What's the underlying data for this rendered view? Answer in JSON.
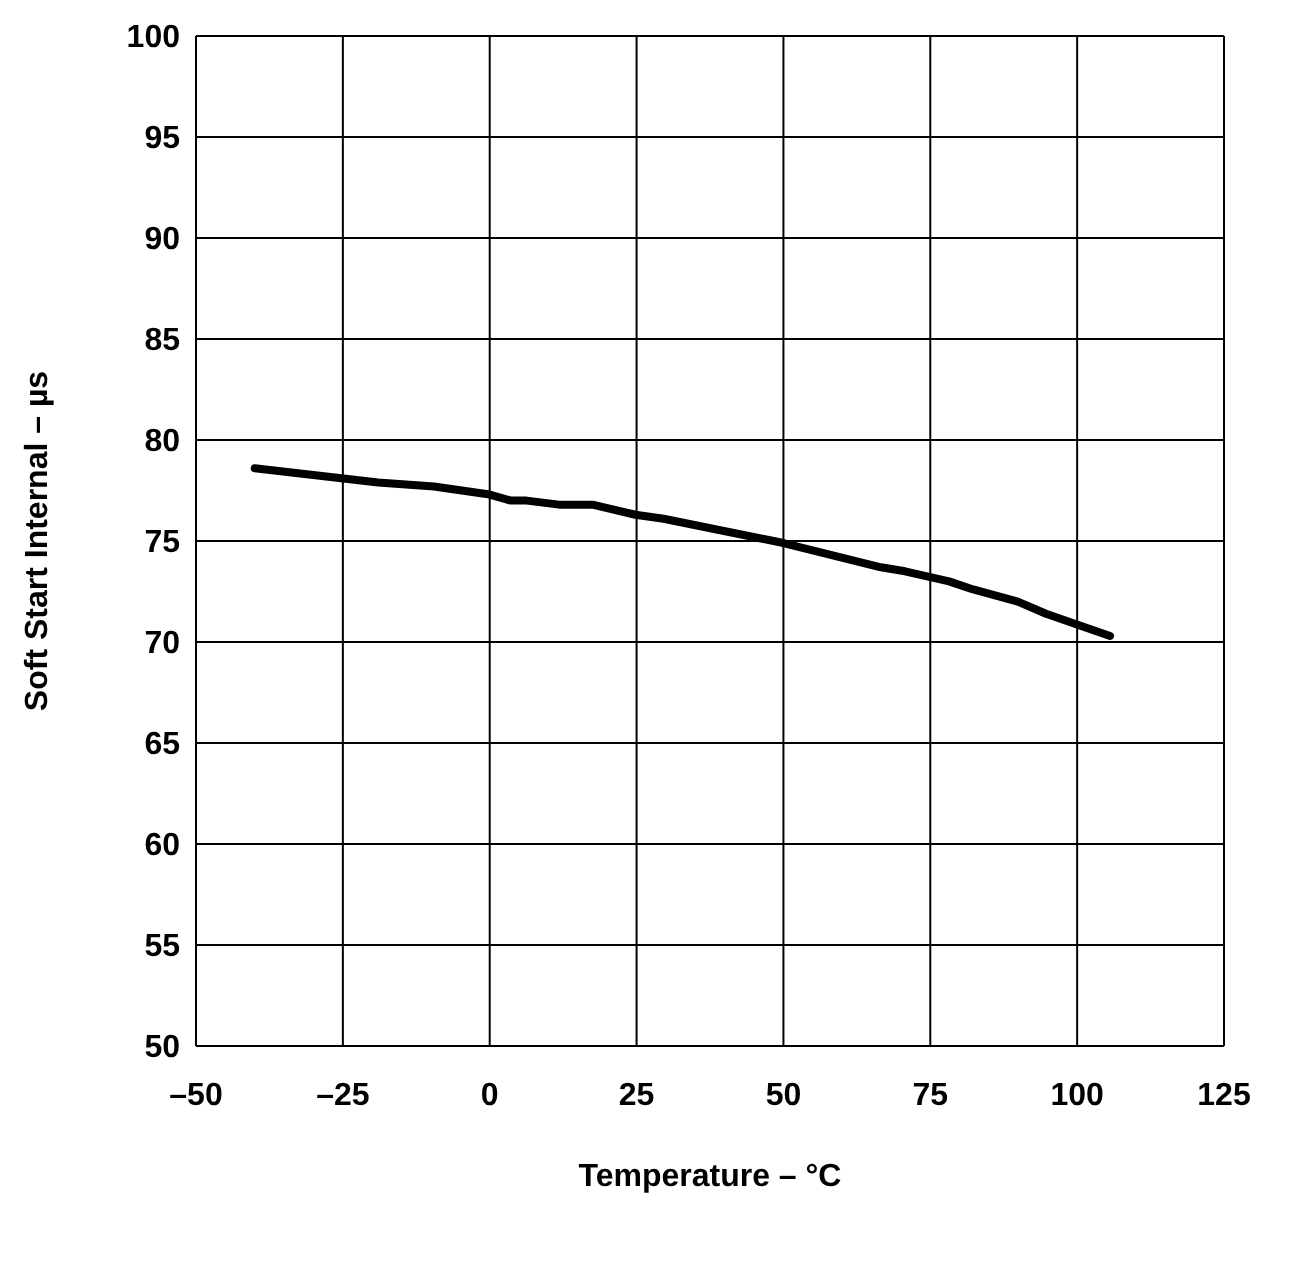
{
  "chart_data": {
    "type": "line",
    "xlabel": "Temperature –  °C",
    "ylabel": "Soft Start Internal – µs",
    "x": [
      -40,
      -19,
      -9.5,
      0,
      3.6,
      6.3,
      11.8,
      17.5,
      24.8,
      29.6,
      50,
      66.6,
      70.7,
      78.2,
      82.3,
      89.9,
      94.7,
      105.6
    ],
    "series": [
      {
        "color": "#000000",
        "values": [
          78.6,
          77.9,
          77.7,
          77.3,
          77.0,
          77.0,
          76.8,
          76.8,
          76.3,
          76.1,
          74.9,
          73.7,
          73.5,
          73.0,
          72.6,
          72.0,
          71.4,
          70.3
        ]
      }
    ],
    "xlim": [
      -50,
      125
    ],
    "xticks": [
      {
        "value": -50,
        "label": "–50"
      },
      {
        "value": -25,
        "label": "–25"
      },
      0,
      25,
      50,
      75,
      100,
      125
    ],
    "ylim": [
      50,
      100
    ],
    "yticks": [
      50,
      55,
      60,
      65,
      70,
      75,
      80,
      85,
      90,
      95,
      100
    ],
    "grid": true,
    "legend": false,
    "marker": "none",
    "line_style": "solid"
  }
}
